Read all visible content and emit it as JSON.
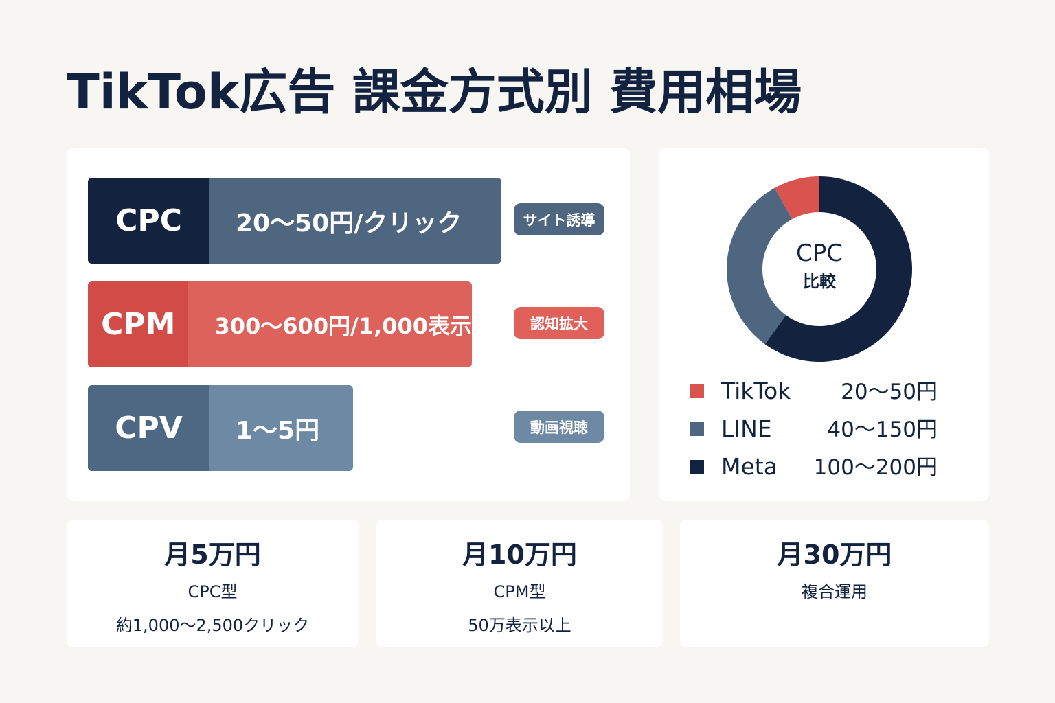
{
  "title": "TikTok広告 課金方式別 費用相場",
  "pricing": [
    {
      "model": "CPC",
      "price": "20〜50円/クリック",
      "tag": "サイト誘導"
    },
    {
      "model": "CPM",
      "price": "300〜600円/1,000表示",
      "tag": "認知拡大"
    },
    {
      "model": "CPV",
      "price": "1〜5円",
      "tag": "動画視聴"
    }
  ],
  "chart_data": {
    "type": "pie",
    "center_title": "CPC",
    "center_subtitle": "比較",
    "categories": [
      "TikTok",
      "LINE",
      "Meta"
    ],
    "values": [
      8,
      32,
      60
    ],
    "colors": [
      "#d9534f",
      "#4f6680",
      "#13233f"
    ],
    "price_ranges": [
      "20〜50円",
      "40〜150円",
      "100〜200円"
    ]
  },
  "budgets": [
    {
      "amount": "月5万円",
      "type": "CPC型",
      "detail": "約1,000〜2,500クリック"
    },
    {
      "amount": "月10万円",
      "type": "CPM型",
      "detail": "50万表示以上"
    },
    {
      "amount": "月30万円",
      "type": "複合運用"
    }
  ]
}
